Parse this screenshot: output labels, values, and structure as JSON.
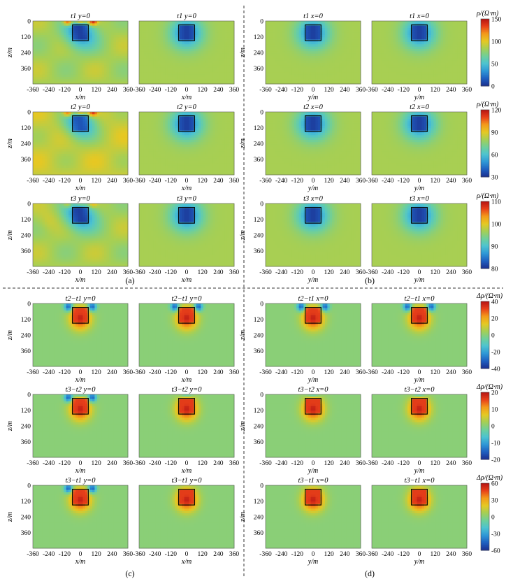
{
  "figure": {
    "panel_labels": [
      "(a)",
      "(b)",
      "(c)",
      "(d)"
    ],
    "units": {
      "rho": "ρ/(Ω·m)",
      "drho": "Δρ/(Ω·m)",
      "x_axis_y0": "x/m",
      "x_axis_x0": "y/m",
      "z_axis": "z/m"
    },
    "colormap": [
      "#1c2f8f",
      "#1f5fc0",
      "#2e97d6",
      "#4cc3d1",
      "#6fcf9a",
      "#a5cf55",
      "#e6c823",
      "#f39a1a",
      "#e8401a",
      "#b41414"
    ],
    "background_color_rho": "#7fc89a"
  },
  "chart_data": [
    {
      "id": "a",
      "type": "heatmap",
      "section": "y=0",
      "xlabel": "x/m",
      "ylabel": "z/m",
      "xlim": [
        -360,
        360
      ],
      "zlim": [
        0,
        480
      ],
      "xticks": [
        -360,
        -240,
        -120,
        0,
        120,
        240,
        360
      ],
      "zticks": [
        0,
        120,
        240,
        360
      ],
      "anomaly_box": {
        "x": [
          -60,
          60
        ],
        "z": [
          30,
          150
        ]
      },
      "rows": [
        {
          "time": "t1",
          "section": "y=0",
          "colorbar": {
            "label": "ρ/(Ω·m)",
            "range": [
              0,
              150
            ],
            "ticks": [
              0,
              50,
              100,
              150
            ]
          }
        },
        {
          "time": "t2",
          "section": "y=0",
          "colorbar": {
            "label": "ρ/(Ω·m)",
            "range": [
              30,
              120
            ],
            "ticks": [
              30,
              60,
              90,
              120
            ]
          }
        },
        {
          "time": "t3",
          "section": "y=0",
          "colorbar": {
            "label": "ρ/(Ω·m)",
            "range": [
              80,
              110
            ],
            "ticks": [
              80,
              90,
              100,
              110
            ]
          }
        }
      ]
    },
    {
      "id": "b",
      "type": "heatmap",
      "section": "x=0",
      "xlabel": "y/m",
      "ylabel": "z/m",
      "xlim": [
        -360,
        360
      ],
      "zlim": [
        0,
        480
      ],
      "xticks": [
        -360,
        -240,
        -120,
        0,
        120,
        240,
        360
      ],
      "zticks": [
        0,
        120,
        240,
        360
      ],
      "anomaly_box": {
        "x": [
          -60,
          60
        ],
        "z": [
          30,
          150
        ]
      },
      "rows": [
        {
          "time": "t1",
          "section": "x=0"
        },
        {
          "time": "t2",
          "section": "x=0"
        },
        {
          "time": "t3",
          "section": "x=0"
        }
      ]
    },
    {
      "id": "c",
      "type": "heatmap",
      "section": "y=0",
      "xlabel": "x/m",
      "ylabel": "z/m",
      "xlim": [
        -360,
        360
      ],
      "zlim": [
        0,
        480
      ],
      "anomaly_box": {
        "x": [
          -60,
          60
        ],
        "z": [
          30,
          150
        ]
      },
      "rows": [
        {
          "time": "t2−t1",
          "section": "y=0",
          "colorbar": {
            "label": "Δρ/(Ω·m)",
            "range": [
              -40,
              40
            ],
            "ticks": [
              -40,
              -20,
              0,
              20,
              40
            ]
          }
        },
        {
          "time": "t3−t2",
          "section": "y=0",
          "colorbar": {
            "label": "Δρ/(Ω·m)",
            "range": [
              -20,
              20
            ],
            "ticks": [
              -20,
              -10,
              0,
              10,
              20
            ]
          }
        },
        {
          "time": "t3−t1",
          "section": "y=0",
          "colorbar": {
            "label": "Δρ/(Ω·m)",
            "range": [
              -60,
              60
            ],
            "ticks": [
              -60,
              -30,
              0,
              30,
              60
            ]
          }
        }
      ]
    },
    {
      "id": "d",
      "type": "heatmap",
      "section": "x=0",
      "xlabel": "y/m",
      "ylabel": "z/m",
      "xlim": [
        -360,
        360
      ],
      "zlim": [
        0,
        480
      ],
      "anomaly_box": {
        "x": [
          -60,
          60
        ],
        "z": [
          30,
          150
        ]
      },
      "rows": [
        {
          "time": "t2−t1",
          "section": "x=0"
        },
        {
          "time": "t3−t2",
          "section": "x=0"
        },
        {
          "time": "t3−t1",
          "section": "x=0"
        }
      ]
    }
  ]
}
